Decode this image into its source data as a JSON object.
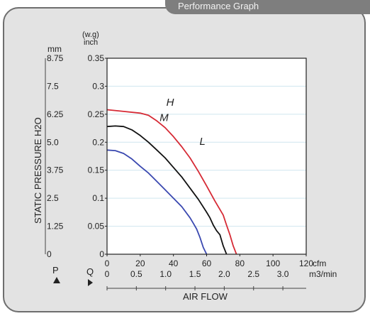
{
  "header_tab": {
    "text": "Performance Graph"
  },
  "colors": {
    "panel": "#e3e3e3",
    "grid": "#cfe6ef",
    "plot_bg": "#ffffff",
    "H": "#d62a35",
    "M": "#111111",
    "L": "#3a48b0"
  },
  "chart_data": {
    "type": "line",
    "xlabel": "AIR FLOW",
    "ylabel": "STATIC PRESSURE H2O",
    "x_unit_cfm": "cfm",
    "x_unit_m3": "m3/min",
    "y_unit_mm": "mm",
    "y_unit_inch": "(w.g)\ninch",
    "p_label": "P",
    "q_label": "Q",
    "xlim": [
      0,
      120
    ],
    "ylim": [
      0,
      0.35
    ],
    "grid": true,
    "x_ticks_cfm": [
      "0",
      "20",
      "40",
      "60",
      "80",
      "100",
      "120"
    ],
    "x_ticks_m3": [
      "0",
      "0.5",
      "1.0",
      "1.5",
      "2.0",
      "2.5",
      "3.0"
    ],
    "y_ticks_inch": [
      "0",
      "0.05",
      "0.1",
      "0.15",
      "0.2",
      "0.25",
      "0.3",
      "0.35"
    ],
    "y_ticks_mm": [
      "0",
      "1.25",
      "2.5",
      "3.75",
      "5.0",
      "6.25",
      "7.5",
      "8.75"
    ],
    "series": [
      {
        "name": "H",
        "x": [
          0,
          10,
          20,
          25,
          30,
          35,
          40,
          45,
          50,
          55,
          60,
          65,
          70,
          72,
          74,
          76,
          78
        ],
        "y": [
          0.258,
          0.255,
          0.252,
          0.248,
          0.238,
          0.226,
          0.21,
          0.192,
          0.172,
          0.148,
          0.122,
          0.095,
          0.07,
          0.052,
          0.035,
          0.015,
          0
        ]
      },
      {
        "name": "M",
        "x": [
          0,
          5,
          10,
          15,
          20,
          25,
          30,
          35,
          40,
          45,
          50,
          55,
          60,
          62,
          64,
          66,
          68,
          70,
          72
        ],
        "y": [
          0.228,
          0.229,
          0.228,
          0.222,
          0.212,
          0.2,
          0.186,
          0.172,
          0.155,
          0.138,
          0.118,
          0.098,
          0.075,
          0.065,
          0.052,
          0.042,
          0.035,
          0.015,
          0
        ]
      },
      {
        "name": "L",
        "x": [
          0,
          5,
          10,
          15,
          20,
          25,
          30,
          35,
          40,
          45,
          50,
          52,
          54,
          56,
          58,
          60
        ],
        "y": [
          0.186,
          0.185,
          0.18,
          0.17,
          0.157,
          0.145,
          0.13,
          0.115,
          0.1,
          0.085,
          0.065,
          0.055,
          0.045,
          0.03,
          0.012,
          0
        ]
      }
    ]
  }
}
